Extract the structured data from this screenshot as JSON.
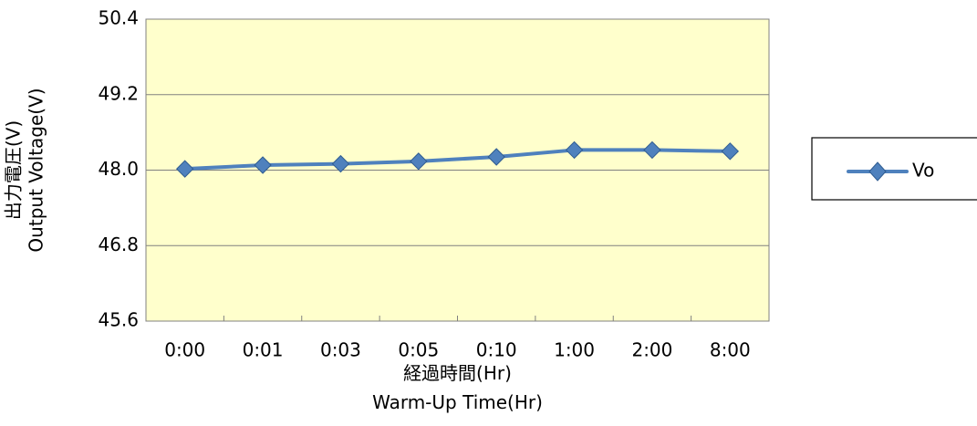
{
  "chart_data": {
    "type": "line",
    "categories": [
      "0:00",
      "0:01",
      "0:03",
      "0:05",
      "0:10",
      "1:00",
      "2:00",
      "8:00"
    ],
    "series": [
      {
        "name": "Vo",
        "values": [
          48.02,
          48.08,
          48.1,
          48.14,
          48.21,
          48.32,
          48.32,
          48.3
        ],
        "color": "#4F81BD"
      }
    ],
    "ylim": [
      45.6,
      50.4
    ],
    "yticks": [
      "45.6",
      "46.8",
      "48.0",
      "49.2",
      "50.4"
    ],
    "ylabel_lines": [
      "出力電圧(V)",
      "Output  Voltage(V)"
    ],
    "xlabel_lines": [
      "経過時間(Hr)",
      "Warm-Up Time(Hr)"
    ],
    "grid": true,
    "legend_position": "right",
    "plot_background": "#FFFFCC"
  }
}
